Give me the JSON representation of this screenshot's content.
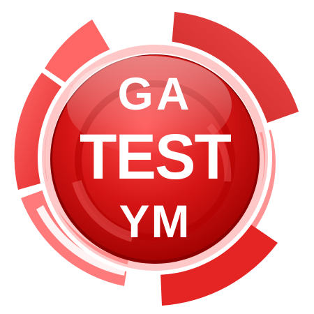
{
  "logo": {
    "line1": "GA",
    "line2": "TEST",
    "line3": "YM"
  },
  "colors": {
    "red_light": "#ff5c5c",
    "red_mid": "#ee2b2b",
    "red_dark": "#c81010",
    "red_deep": "#a60000",
    "text": "#ffffff"
  }
}
